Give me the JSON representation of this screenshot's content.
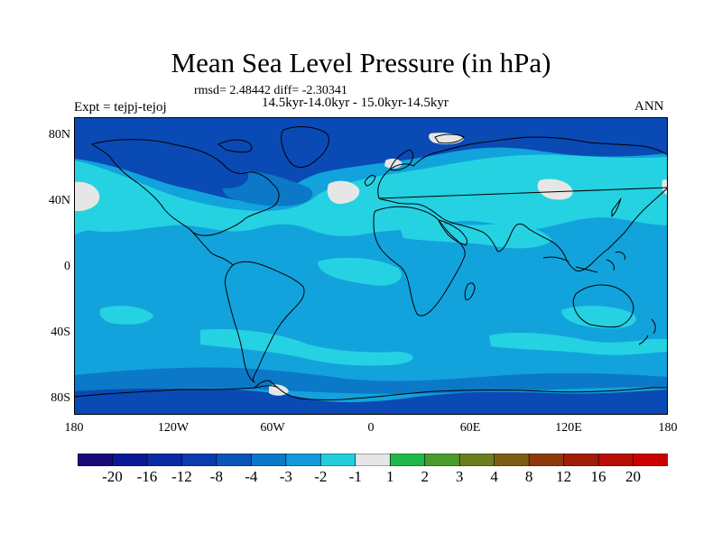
{
  "title": "Mean Sea Level Pressure (in hPa)",
  "stats_text": "rmsd= 2.48442 diff= -2.30341",
  "period_text": "14.5kyr-14.0kyr - 15.0kyr-14.5kyr",
  "experiment_text": "Expt = tejpj-tejoj",
  "season": "ANN",
  "lat_ticks": [
    "80N",
    "40N",
    "0",
    "40S",
    "80S"
  ],
  "lon_ticks": [
    "180",
    "120W",
    "60W",
    "0",
    "60E",
    "120E",
    "180"
  ],
  "colorbar": {
    "colors": [
      "#1a0a78",
      "#0a1a96",
      "#0b2aa4",
      "#0a3cae",
      "#0a55b8",
      "#0c78c8",
      "#1199d8",
      "#22cede",
      "#e6e6e6",
      "#1fb849",
      "#4a9a2c",
      "#6a7e1e",
      "#7e5e14",
      "#903a0c",
      "#a01e08",
      "#b80e06",
      "#cc0000"
    ],
    "labels": [
      "-20",
      "-16",
      "-12",
      "-8",
      "-4",
      "-3",
      "-2",
      "-1",
      "1",
      "2",
      "3",
      "4",
      "8",
      "12",
      "16",
      "20"
    ]
  },
  "map_colors": {
    "background": "#12a3dc",
    "light": "#25d2e2",
    "medium": "#0c78c8",
    "dark": "#0a4ab4",
    "neutral": "#e6e6e6",
    "coast": "#000000"
  }
}
